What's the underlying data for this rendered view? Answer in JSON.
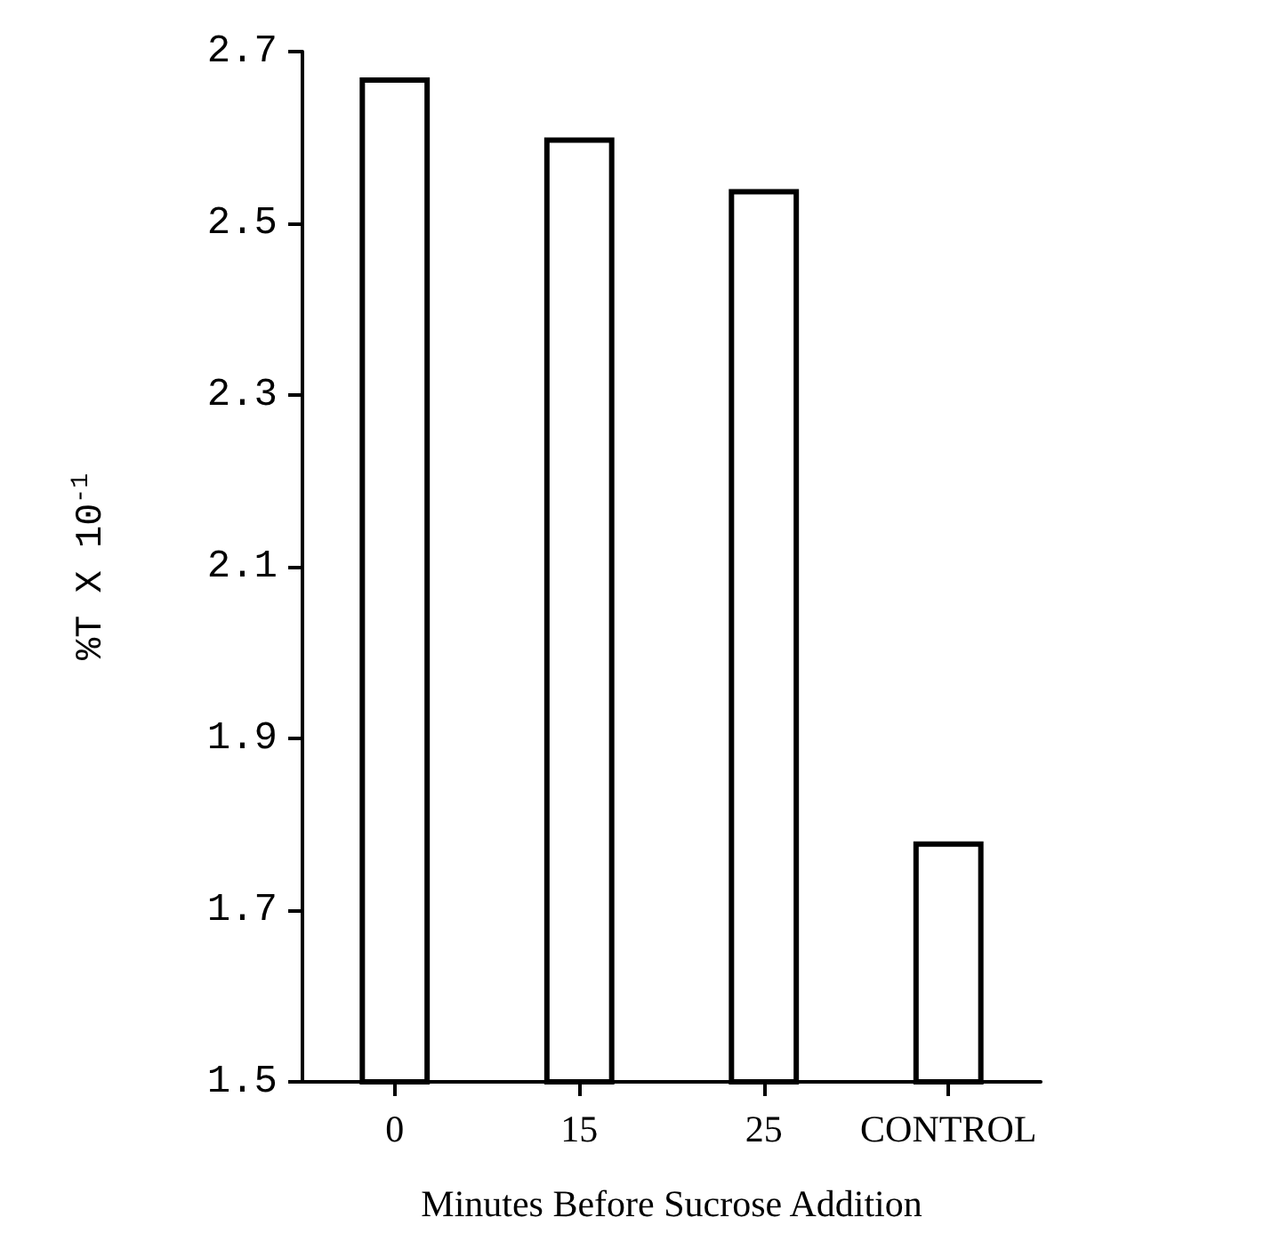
{
  "chart_data": {
    "type": "bar",
    "xlabel": "Minutes Before Sucrose Addition",
    "ylabel": "%T X 10$^{-1}$",
    "categories": [
      "0",
      "15",
      "25",
      "CONTROL"
    ],
    "values": [
      2.67,
      2.6,
      2.54,
      1.78
    ],
    "color": "#ffffff",
    "ylim": [
      1.5,
      2.7
    ],
    "yticks": [
      1.5,
      1.7,
      1.9,
      2.1,
      2.3,
      2.5,
      2.7
    ],
    "grid": false
  }
}
